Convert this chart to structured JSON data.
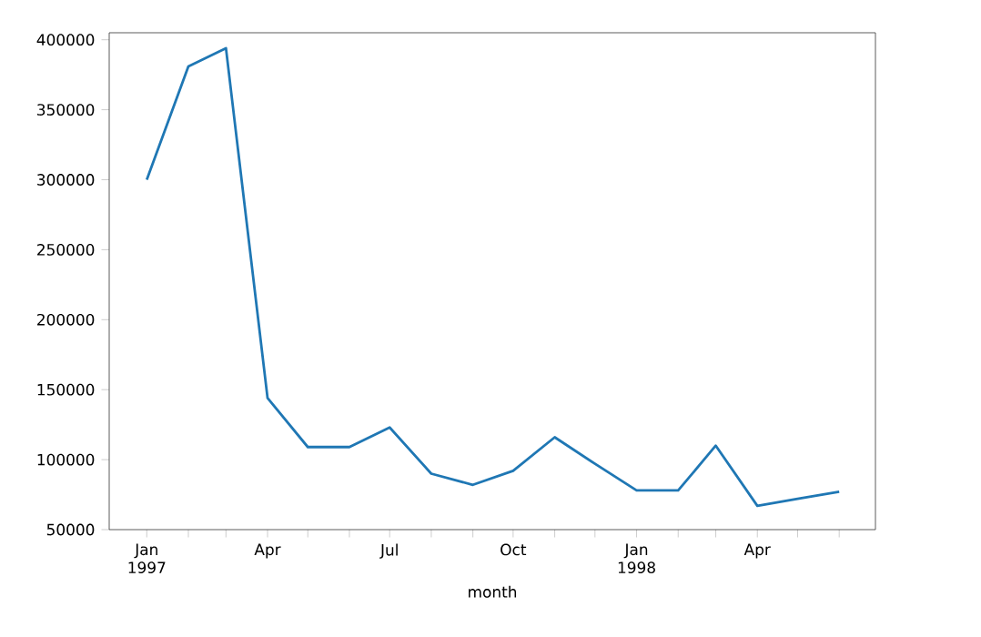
{
  "chart_data": {
    "type": "line",
    "xlabel": "month",
    "x": [
      "1997-01",
      "1997-02",
      "1997-03",
      "1997-04",
      "1997-05",
      "1997-06",
      "1997-07",
      "1997-08",
      "1997-09",
      "1997-10",
      "1997-11",
      "1997-12",
      "1998-01",
      "1998-02",
      "1998-03",
      "1998-04",
      "1998-05",
      "1998-06"
    ],
    "series": [
      {
        "color": "#1f77b4",
        "values": [
          300000,
          381000,
          394000,
          144000,
          109000,
          109000,
          123000,
          90000,
          82000,
          92000,
          116000,
          97000,
          78000,
          78000,
          110000,
          67000,
          72000,
          77000
        ]
      }
    ],
    "xlim": [
      "1996-12-04",
      "1998-06-28"
    ],
    "xticks": [
      {
        "value": "1997-01",
        "label": "Jan 1997"
      },
      {
        "value": "1997-02",
        "label": null
      },
      {
        "value": "1997-03",
        "label": null
      },
      {
        "value": "1997-04",
        "label": "Apr"
      },
      {
        "value": "1997-05",
        "label": null
      },
      {
        "value": "1997-06",
        "label": null
      },
      {
        "value": "1997-07",
        "label": "Jul"
      },
      {
        "value": "1997-08",
        "label": null
      },
      {
        "value": "1997-09",
        "label": null
      },
      {
        "value": "1997-10",
        "label": "Oct"
      },
      {
        "value": "1997-11",
        "label": null
      },
      {
        "value": "1997-12",
        "label": null
      },
      {
        "value": "1998-01",
        "label": "Jan 1998"
      },
      {
        "value": "1998-02",
        "label": null
      },
      {
        "value": "1998-03",
        "label": null
      },
      {
        "value": "1998-04",
        "label": "Apr"
      },
      {
        "value": "1998-05",
        "label": null
      },
      {
        "value": "1998-06",
        "label": null
      }
    ],
    "ylim": [
      50000,
      405000
    ],
    "yticks": [
      50000,
      100000,
      150000,
      200000,
      250000,
      300000,
      350000,
      400000
    ],
    "grid": false,
    "marker": "none",
    "line_style": "solid"
  }
}
